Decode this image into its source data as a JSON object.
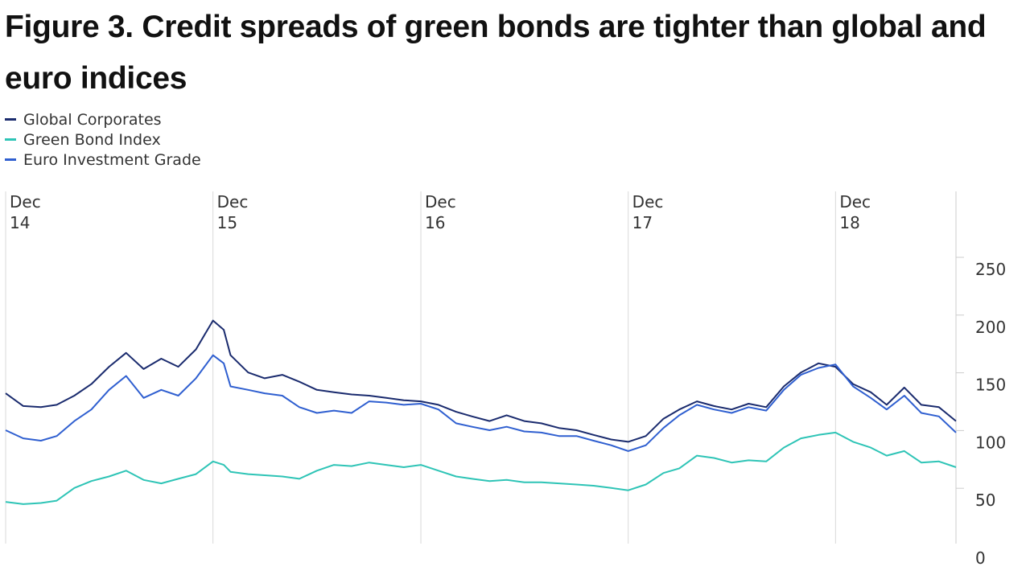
{
  "chart_data": {
    "type": "line",
    "title": "Figure 3. Credit spreads of green bonds are tighter than global and euro indices",
    "xlabel": "",
    "ylabel": "",
    "x_range": [
      "2014-12",
      "2019-07"
    ],
    "ylim": [
      0,
      250
    ],
    "yticks": [
      0,
      50,
      100,
      150,
      200,
      250
    ],
    "xticks": [
      {
        "x": "2014-12",
        "label1": "Dec",
        "label2": "14"
      },
      {
        "x": "2015-12",
        "label1": "Dec",
        "label2": "15"
      },
      {
        "x": "2016-12",
        "label1": "Dec",
        "label2": "16"
      },
      {
        "x": "2017-12",
        "label1": "Dec",
        "label2": "17"
      },
      {
        "x": "2018-12",
        "label1": "Dec",
        "label2": "18"
      }
    ],
    "legend_position": "top-left",
    "grid": "vertical",
    "series": [
      {
        "name": "Global Corporates",
        "color": "#1a2b6e",
        "points": [
          [
            "2014-12",
            142
          ],
          [
            "2015-01",
            131
          ],
          [
            "2015-02",
            130
          ],
          [
            "2015-03",
            132
          ],
          [
            "2015-04",
            140
          ],
          [
            "2015-05",
            150
          ],
          [
            "2015-06",
            165
          ],
          [
            "2015-07",
            177
          ],
          [
            "2015-08",
            163
          ],
          [
            "2015-09",
            172
          ],
          [
            "2015-10",
            165
          ],
          [
            "2015-11",
            180
          ],
          [
            "2015-12",
            205
          ],
          [
            "2015-12-20",
            197
          ],
          [
            "2016-01",
            175
          ],
          [
            "2016-02",
            160
          ],
          [
            "2016-03",
            155
          ],
          [
            "2016-04",
            158
          ],
          [
            "2016-05",
            152
          ],
          [
            "2016-06",
            145
          ],
          [
            "2016-07",
            143
          ],
          [
            "2016-08",
            141
          ],
          [
            "2016-09",
            140
          ],
          [
            "2016-10",
            138
          ],
          [
            "2016-11",
            136
          ],
          [
            "2016-12",
            135
          ],
          [
            "2017-01",
            132
          ],
          [
            "2017-02",
            126
          ],
          [
            "2017-03",
            122
          ],
          [
            "2017-04",
            118
          ],
          [
            "2017-05",
            123
          ],
          [
            "2017-06",
            118
          ],
          [
            "2017-07",
            116
          ],
          [
            "2017-08",
            112
          ],
          [
            "2017-09",
            110
          ],
          [
            "2017-10",
            106
          ],
          [
            "2017-11",
            102
          ],
          [
            "2017-12",
            100
          ],
          [
            "2018-01",
            105
          ],
          [
            "2018-02",
            120
          ],
          [
            "2018-03",
            128
          ],
          [
            "2018-04",
            135
          ],
          [
            "2018-05",
            131
          ],
          [
            "2018-06",
            128
          ],
          [
            "2018-07",
            133
          ],
          [
            "2018-08",
            130
          ],
          [
            "2018-09",
            148
          ],
          [
            "2018-10",
            160
          ],
          [
            "2018-11",
            168
          ],
          [
            "2018-12",
            165
          ],
          [
            "2019-01",
            150
          ],
          [
            "2019-02",
            143
          ],
          [
            "2019-03",
            132
          ],
          [
            "2019-04",
            147
          ],
          [
            "2019-05",
            132
          ],
          [
            "2019-06",
            130
          ],
          [
            "2019-07",
            118
          ]
        ]
      },
      {
        "name": "Green Bond Index",
        "color": "#2ec4b6",
        "points": [
          [
            "2014-12",
            48
          ],
          [
            "2015-01",
            46
          ],
          [
            "2015-02",
            47
          ],
          [
            "2015-03",
            49
          ],
          [
            "2015-04",
            60
          ],
          [
            "2015-05",
            66
          ],
          [
            "2015-06",
            70
          ],
          [
            "2015-07",
            75
          ],
          [
            "2015-08",
            67
          ],
          [
            "2015-09",
            64
          ],
          [
            "2015-10",
            68
          ],
          [
            "2015-11",
            72
          ],
          [
            "2015-12",
            83
          ],
          [
            "2015-12-20",
            80
          ],
          [
            "2016-01",
            74
          ],
          [
            "2016-02",
            72
          ],
          [
            "2016-03",
            71
          ],
          [
            "2016-04",
            70
          ],
          [
            "2016-05",
            68
          ],
          [
            "2016-06",
            75
          ],
          [
            "2016-07",
            80
          ],
          [
            "2016-08",
            79
          ],
          [
            "2016-09",
            82
          ],
          [
            "2016-10",
            80
          ],
          [
            "2016-11",
            78
          ],
          [
            "2016-12",
            80
          ],
          [
            "2017-01",
            75
          ],
          [
            "2017-02",
            70
          ],
          [
            "2017-03",
            68
          ],
          [
            "2017-04",
            66
          ],
          [
            "2017-05",
            67
          ],
          [
            "2017-06",
            65
          ],
          [
            "2017-07",
            65
          ],
          [
            "2017-08",
            64
          ],
          [
            "2017-09",
            63
          ],
          [
            "2017-10",
            62
          ],
          [
            "2017-11",
            60
          ],
          [
            "2017-12",
            58
          ],
          [
            "2018-01",
            63
          ],
          [
            "2018-02",
            73
          ],
          [
            "2018-03",
            77
          ],
          [
            "2018-04",
            88
          ],
          [
            "2018-05",
            86
          ],
          [
            "2018-06",
            82
          ],
          [
            "2018-07",
            84
          ],
          [
            "2018-08",
            83
          ],
          [
            "2018-09",
            95
          ],
          [
            "2018-10",
            103
          ],
          [
            "2018-11",
            106
          ],
          [
            "2018-12",
            108
          ],
          [
            "2019-01",
            100
          ],
          [
            "2019-02",
            95
          ],
          [
            "2019-03",
            88
          ],
          [
            "2019-04",
            92
          ],
          [
            "2019-05",
            82
          ],
          [
            "2019-06",
            83
          ],
          [
            "2019-07",
            78
          ]
        ]
      },
      {
        "name": "Euro Investment Grade",
        "color": "#2f5fd0",
        "points": [
          [
            "2014-12",
            110
          ],
          [
            "2015-01",
            103
          ],
          [
            "2015-02",
            101
          ],
          [
            "2015-03",
            105
          ],
          [
            "2015-04",
            118
          ],
          [
            "2015-05",
            128
          ],
          [
            "2015-06",
            145
          ],
          [
            "2015-07",
            157
          ],
          [
            "2015-08",
            138
          ],
          [
            "2015-09",
            145
          ],
          [
            "2015-10",
            140
          ],
          [
            "2015-11",
            155
          ],
          [
            "2015-12",
            175
          ],
          [
            "2015-12-20",
            168
          ],
          [
            "2016-01",
            148
          ],
          [
            "2016-02",
            145
          ],
          [
            "2016-03",
            142
          ],
          [
            "2016-04",
            140
          ],
          [
            "2016-05",
            130
          ],
          [
            "2016-06",
            125
          ],
          [
            "2016-07",
            127
          ],
          [
            "2016-08",
            125
          ],
          [
            "2016-09",
            135
          ],
          [
            "2016-10",
            134
          ],
          [
            "2016-11",
            132
          ],
          [
            "2016-12",
            133
          ],
          [
            "2017-01",
            128
          ],
          [
            "2017-02",
            116
          ],
          [
            "2017-03",
            113
          ],
          [
            "2017-04",
            110
          ],
          [
            "2017-05",
            113
          ],
          [
            "2017-06",
            109
          ],
          [
            "2017-07",
            108
          ],
          [
            "2017-08",
            105
          ],
          [
            "2017-09",
            105
          ],
          [
            "2017-10",
            101
          ],
          [
            "2017-11",
            97
          ],
          [
            "2017-12",
            92
          ],
          [
            "2018-01",
            97
          ],
          [
            "2018-02",
            112
          ],
          [
            "2018-03",
            123
          ],
          [
            "2018-04",
            132
          ],
          [
            "2018-05",
            128
          ],
          [
            "2018-06",
            125
          ],
          [
            "2018-07",
            130
          ],
          [
            "2018-08",
            127
          ],
          [
            "2018-09",
            145
          ],
          [
            "2018-10",
            158
          ],
          [
            "2018-11",
            164
          ],
          [
            "2018-12",
            167
          ],
          [
            "2019-01",
            148
          ],
          [
            "2019-02",
            138
          ],
          [
            "2019-03",
            128
          ],
          [
            "2019-04",
            140
          ],
          [
            "2019-05",
            125
          ],
          [
            "2019-06",
            122
          ],
          [
            "2019-07",
            108
          ]
        ]
      }
    ]
  }
}
